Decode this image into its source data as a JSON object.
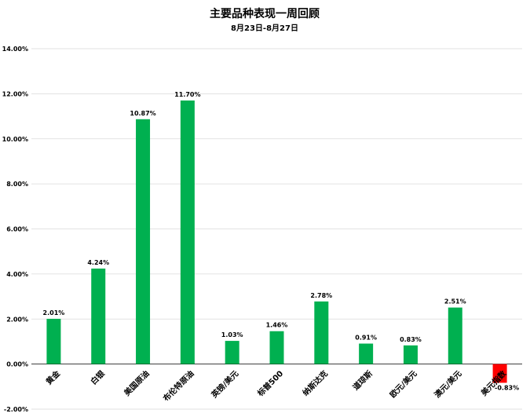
{
  "chart_data": {
    "type": "bar",
    "title": "主要品种表现一周回顾",
    "subtitle": "8月23日-8月27日",
    "categories": [
      "黄金",
      "白银",
      "美国原油",
      "布伦特原油",
      "英镑/美元",
      "标普500",
      "纳斯达克",
      "道琼斯",
      "欧元/美元",
      "澳元/美元",
      "美元指数"
    ],
    "values": [
      2.01,
      4.24,
      10.87,
      11.7,
      1.03,
      1.46,
      2.78,
      0.91,
      0.83,
      2.51,
      -0.83
    ],
    "data_labels": [
      "2.01%",
      "4.24%",
      "10.87%",
      "11.70%",
      "1.03%",
      "1.46%",
      "2.78%",
      "0.91%",
      "0.83%",
      "2.51%",
      "-0.83%"
    ],
    "yticks": [
      -2,
      0,
      2,
      4,
      6,
      8,
      10,
      12,
      14
    ],
    "ytick_labels": [
      "-2.00%",
      "0.00%",
      "2.00%",
      "4.00%",
      "6.00%",
      "8.00%",
      "10.00%",
      "12.00%",
      "14.00%"
    ],
    "ylim": [
      -2,
      14
    ],
    "grid": true,
    "legend": "none",
    "colors": {
      "positive": "#00b050",
      "negative": "#ff0000",
      "grid": "#d9d9d9",
      "axis": "#000000"
    }
  }
}
